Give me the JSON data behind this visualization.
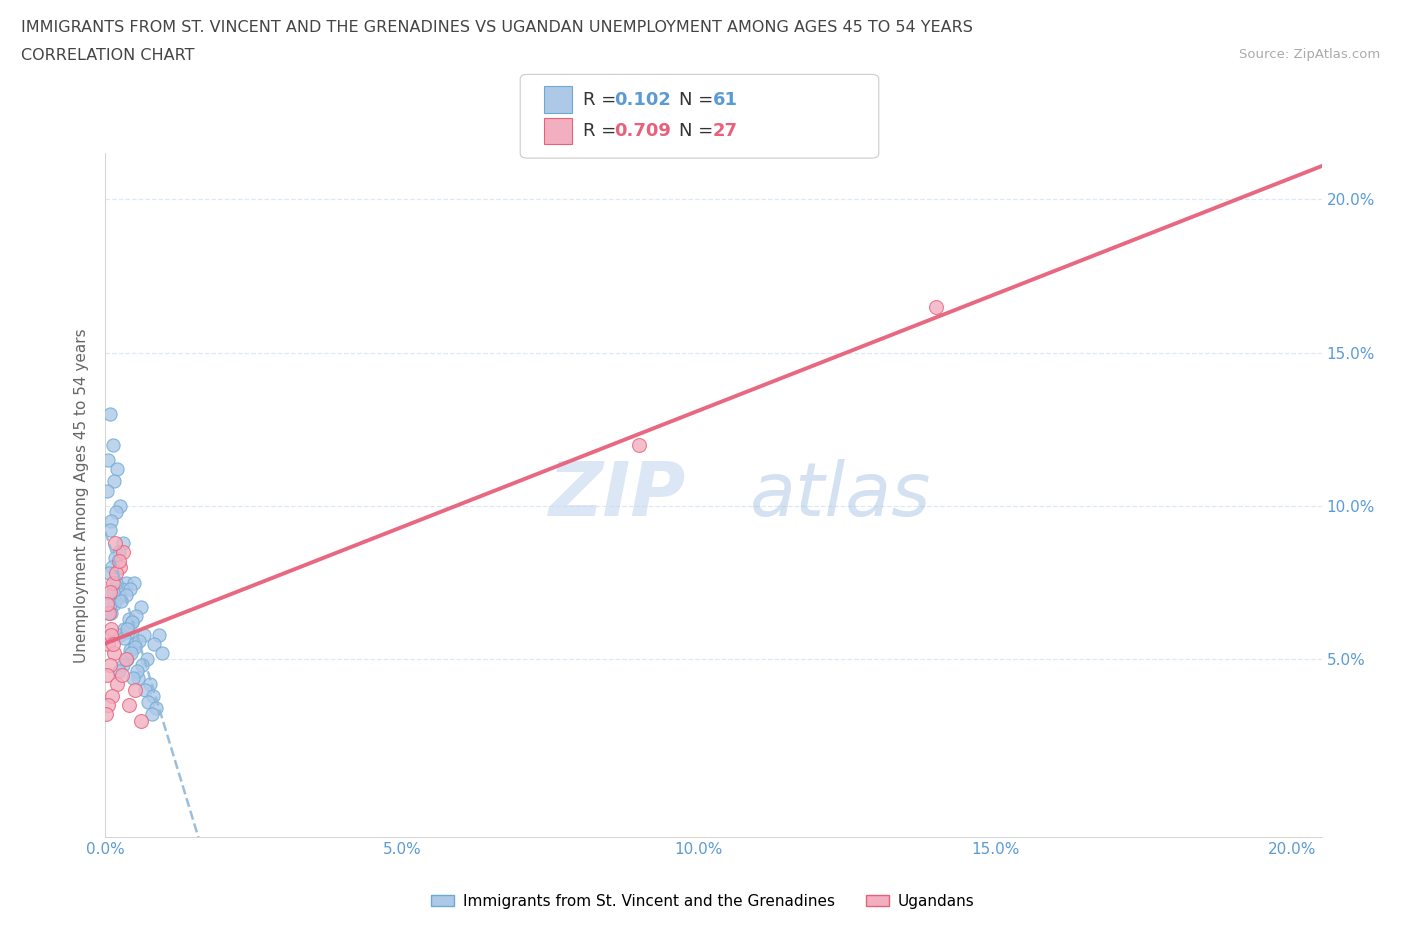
{
  "title_line1": "IMMIGRANTS FROM ST. VINCENT AND THE GRENADINES VS UGANDAN UNEMPLOYMENT AMONG AGES 45 TO 54 YEARS",
  "title_line2": "CORRELATION CHART",
  "source_text": "Source: ZipAtlas.com",
  "ylabel": "Unemployment Among Ages 45 to 54 years",
  "legend_label1": "Immigrants from St. Vincent and the Grenadines",
  "legend_label2": "Ugandans",
  "r1": "0.102",
  "n1": "61",
  "r2": "0.709",
  "n2": "27",
  "blue_face": "#aec8e8",
  "blue_edge": "#6aaad4",
  "pink_face": "#f2afc0",
  "pink_edge": "#e8607a",
  "blue_line_color": "#90b8d8",
  "pink_line_color": "#e8607a",
  "title_color": "#444444",
  "axis_color": "#5b9bd5",
  "source_color": "#aaaaaa",
  "grid_color": "#dde8f5",
  "bg_color": "#ffffff",
  "xlim": [
    0.0,
    0.205
  ],
  "ylim": [
    -0.008,
    0.215
  ],
  "x_ticks": [
    0.0,
    0.05,
    0.1,
    0.15,
    0.2
  ],
  "x_tick_labels": [
    "0.0%",
    "5.0%",
    "10.0%",
    "15.0%",
    "20.0%"
  ],
  "y_ticks": [
    0.05,
    0.1,
    0.15,
    0.2
  ],
  "y_tick_labels": [
    "5.0%",
    "10.0%",
    "15.0%",
    "20.0%"
  ],
  "blue_x": [
    0.0008,
    0.0012,
    0.0005,
    0.002,
    0.0015,
    0.0003,
    0.0025,
    0.0018,
    0.001,
    0.0007,
    0.003,
    0.0022,
    0.0016,
    0.0011,
    0.0006,
    0.0035,
    0.0028,
    0.0021,
    0.0014,
    0.0009,
    0.004,
    0.0032,
    0.0024,
    0.0017,
    0.0013,
    0.0008,
    0.0004,
    0.0045,
    0.0038,
    0.0031,
    0.005,
    0.0042,
    0.0036,
    0.0029,
    0.0023,
    0.0055,
    0.0048,
    0.0041,
    0.0034,
    0.0027,
    0.006,
    0.0052,
    0.0044,
    0.0037,
    0.0065,
    0.0057,
    0.0049,
    0.0043,
    0.007,
    0.0062,
    0.0054,
    0.0047,
    0.0075,
    0.0067,
    0.008,
    0.0072,
    0.0085,
    0.0078,
    0.009,
    0.0082,
    0.0095
  ],
  "blue_y": [
    0.13,
    0.12,
    0.115,
    0.112,
    0.108,
    0.105,
    0.1,
    0.098,
    0.095,
    0.092,
    0.088,
    0.085,
    0.083,
    0.08,
    0.078,
    0.075,
    0.073,
    0.07,
    0.068,
    0.065,
    0.063,
    0.06,
    0.058,
    0.075,
    0.072,
    0.068,
    0.065,
    0.062,
    0.059,
    0.057,
    0.055,
    0.053,
    0.05,
    0.048,
    0.046,
    0.044,
    0.075,
    0.073,
    0.071,
    0.069,
    0.067,
    0.064,
    0.062,
    0.06,
    0.058,
    0.056,
    0.054,
    0.052,
    0.05,
    0.048,
    0.046,
    0.044,
    0.042,
    0.04,
    0.038,
    0.036,
    0.034,
    0.032,
    0.058,
    0.055,
    0.052
  ],
  "pink_x": [
    0.0006,
    0.001,
    0.0004,
    0.0015,
    0.0008,
    0.0003,
    0.002,
    0.0012,
    0.0007,
    0.0002,
    0.0025,
    0.0018,
    0.0011,
    0.0005,
    0.0001,
    0.003,
    0.0022,
    0.0016,
    0.0009,
    0.0013,
    0.0035,
    0.0028,
    0.004,
    0.005,
    0.006,
    0.09,
    0.14
  ],
  "pink_y": [
    0.065,
    0.06,
    0.055,
    0.052,
    0.048,
    0.045,
    0.042,
    0.075,
    0.072,
    0.068,
    0.08,
    0.078,
    0.038,
    0.035,
    0.032,
    0.085,
    0.082,
    0.088,
    0.058,
    0.055,
    0.05,
    0.045,
    0.035,
    0.04,
    0.03,
    0.12,
    0.165
  ]
}
